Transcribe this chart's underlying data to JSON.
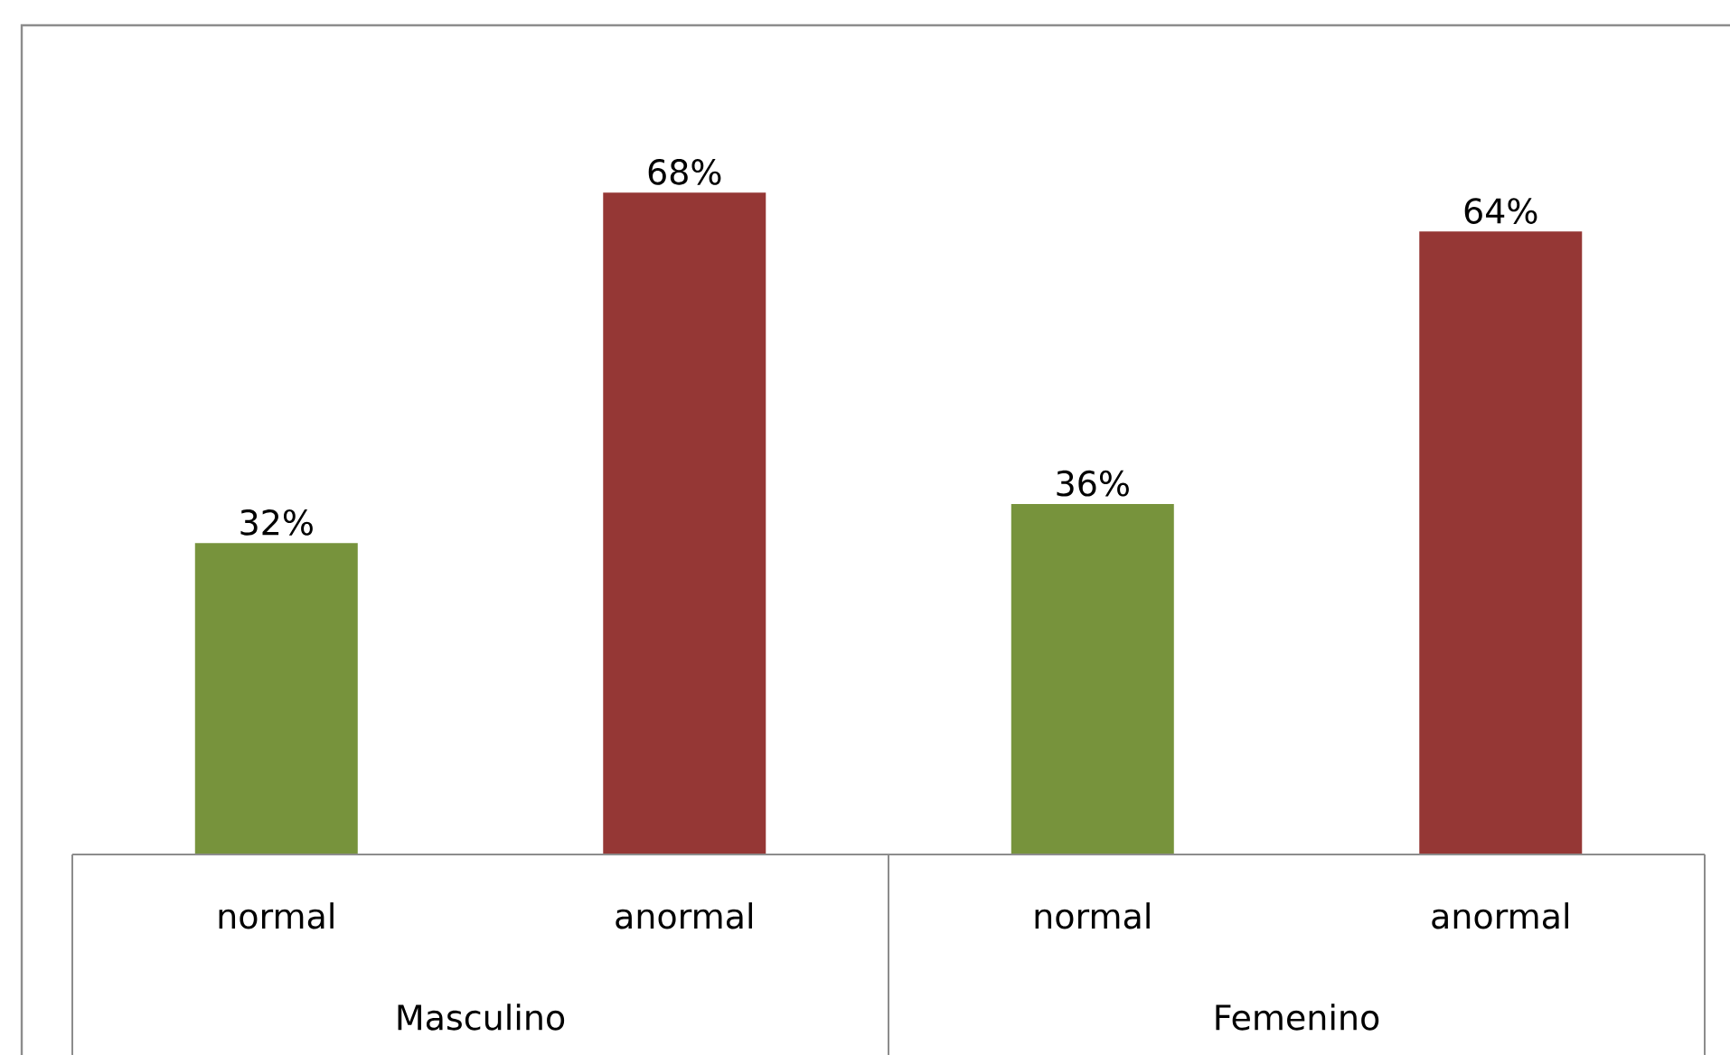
{
  "chart_data": {
    "type": "bar",
    "categories": [
      "normal",
      "anormal",
      "normal",
      "anormal"
    ],
    "values": [
      32,
      68,
      36,
      64
    ],
    "colors": [
      "#77933c",
      "#953735",
      "#77933c",
      "#953735"
    ],
    "value_labels": [
      "32%",
      "68%",
      "36%",
      "64%"
    ],
    "annotations": [
      "Masculino",
      "Femenino"
    ]
  }
}
